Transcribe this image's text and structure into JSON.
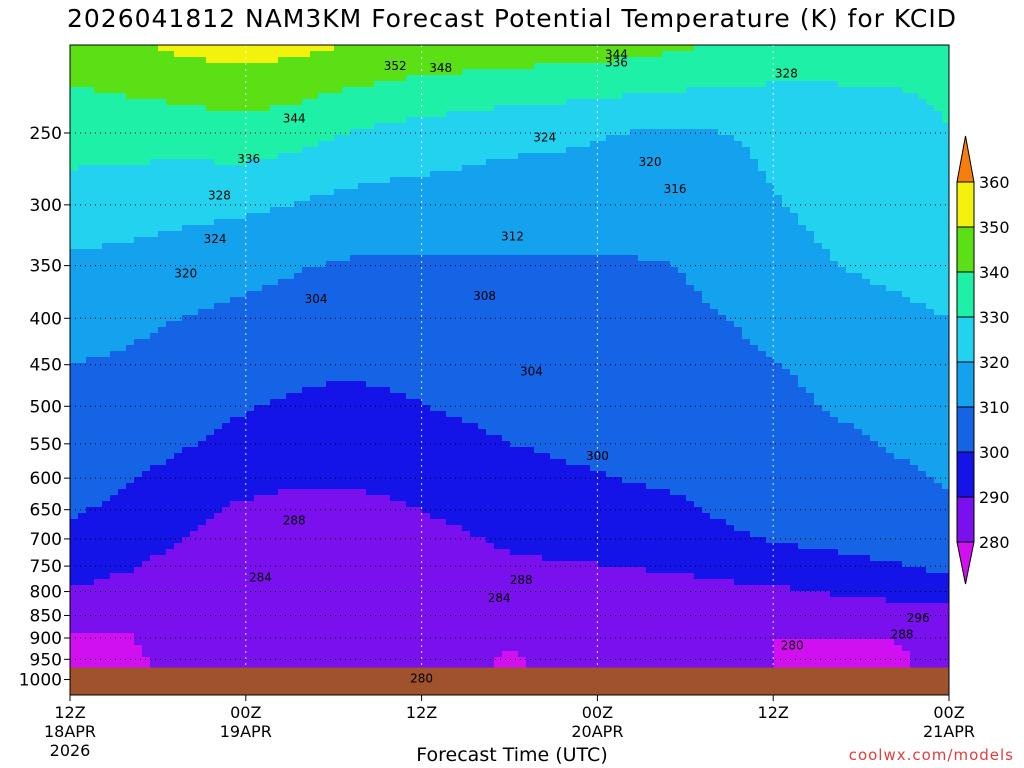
{
  "title": "2026041812 NAM3KM Forecast Potential Temperature (K) for KCID",
  "credit": "coolwx.com/models",
  "chart_data": {
    "type": "heatmap",
    "title": "2026041812 NAM3KM Forecast Potential Temperature (K) for KCID",
    "xlabel": "Forecast Time (UTC)",
    "ylabel": "",
    "y_scale": "log",
    "ylim": [
      1000,
      200
    ],
    "xlim": [
      0,
      60
    ],
    "x_ticks": [
      {
        "hour": 0,
        "lines": [
          "12Z",
          "18APR",
          "2026"
        ]
      },
      {
        "hour": 12,
        "lines": [
          "00Z",
          "19APR"
        ]
      },
      {
        "hour": 24,
        "lines": [
          "12Z"
        ]
      },
      {
        "hour": 36,
        "lines": [
          "00Z",
          "20APR"
        ]
      },
      {
        "hour": 48,
        "lines": [
          "12Z"
        ]
      },
      {
        "hour": 60,
        "lines": [
          "00Z",
          "21APR"
        ]
      }
    ],
    "y_ticks": [
      "250",
      "300",
      "350",
      "400",
      "450",
      "500",
      "550",
      "600",
      "650",
      "700",
      "750",
      "800",
      "850",
      "900",
      "950",
      "1000"
    ],
    "grid": true,
    "colorbar": {
      "levels": [
        280,
        290,
        300,
        310,
        320,
        330,
        340,
        350,
        360
      ],
      "colors": [
        "#d010f0",
        "#7a10ee",
        "#1414e8",
        "#1664e6",
        "#14a2ee",
        "#22d2ee",
        "#1ef0a8",
        "#5ae014",
        "#f2f20c",
        "#f8b410",
        "#f57f0a"
      ]
    },
    "series": [
      {
        "pressure": 950,
        "values": [
          278,
          278,
          283,
          283,
          283,
          283,
          283,
          283,
          279,
          283,
          283,
          283,
          283,
          279,
          279,
          279,
          282
        ]
      },
      {
        "pressure": 900,
        "values": [
          279,
          279,
          284,
          284,
          284,
          284,
          284,
          284,
          281,
          284,
          284,
          284,
          280,
          280,
          280,
          280,
          283
        ]
      },
      {
        "pressure": 850,
        "values": [
          283,
          283,
          285,
          285,
          285,
          285,
          285,
          285,
          285,
          285,
          285,
          285,
          285,
          285,
          285,
          285,
          286
        ]
      },
      {
        "pressure": 800,
        "values": [
          289,
          287,
          286,
          286,
          286,
          286,
          286,
          286,
          286,
          287,
          287,
          287,
          288,
          289,
          291,
          293,
          296
        ]
      },
      {
        "pressure": 750,
        "values": [
          294,
          291,
          287,
          285,
          285,
          285,
          285,
          286,
          288,
          289,
          290,
          291,
          293,
          295,
          297,
          299,
          302
        ]
      },
      {
        "pressure": 700,
        "values": [
          298,
          295,
          290,
          286,
          285,
          285,
          286,
          288,
          292,
          294,
          296,
          297,
          299,
          301,
          303,
          305,
          307
        ]
      },
      {
        "pressure": 650,
        "values": [
          301,
          298,
          293,
          289,
          288,
          288,
          289,
          292,
          295,
          297,
          298,
          299,
          301,
          303,
          305,
          307,
          309
        ]
      },
      {
        "pressure": 600,
        "values": [
          304,
          301,
          297,
          293,
          291,
          291,
          292,
          295,
          297,
          299,
          300,
          301,
          302,
          304,
          306,
          308,
          311
        ]
      },
      {
        "pressure": 550,
        "values": [
          306,
          304,
          301,
          298,
          295,
          294,
          296,
          298,
          300,
          301,
          302,
          303,
          304,
          306,
          308,
          311,
          313
        ]
      },
      {
        "pressure": 500,
        "values": [
          308,
          307,
          304,
          301,
          299,
          298,
          299,
          301,
          302,
          303,
          304,
          305,
          306,
          308,
          311,
          313,
          315
        ]
      },
      {
        "pressure": 450,
        "values": [
          310,
          309,
          307,
          304,
          302,
          301,
          302,
          303,
          304,
          305,
          306,
          307,
          308,
          310,
          313,
          315,
          317
        ]
      },
      {
        "pressure": 400,
        "values": [
          313,
          312,
          310,
          308,
          306,
          304,
          305,
          306,
          307,
          307,
          308,
          308,
          310,
          313,
          316,
          318,
          320
        ]
      },
      {
        "pressure": 350,
        "values": [
          318,
          317,
          315,
          313,
          311,
          309,
          309,
          309,
          309,
          309,
          309,
          310,
          313,
          317,
          320,
          322,
          324
        ]
      },
      {
        "pressure": 300,
        "values": [
          326,
          325,
          323,
          322,
          320,
          317,
          316,
          315,
          314,
          314,
          314,
          315,
          317,
          320,
          323,
          325,
          327
        ]
      },
      {
        "pressure": 250,
        "values": [
          334,
          334,
          334,
          336,
          334,
          330,
          327,
          325,
          323,
          322,
          320,
          319,
          320,
          322,
          325,
          328,
          330
        ]
      },
      {
        "pressure": 200,
        "values": [
          345,
          348,
          352,
          354,
          353,
          350,
          348,
          347,
          346,
          345,
          344,
          342,
          339,
          336,
          334,
          332,
          331
        ]
      }
    ],
    "hours": [
      0,
      3.75,
      7.5,
      11.25,
      15,
      18.75,
      22.5,
      26.25,
      30,
      33.75,
      37.5,
      41.25,
      45,
      48.75,
      52.5,
      56.25,
      60
    ],
    "ground_below_pressure": 970,
    "contour_labels": [
      {
        "value": "344",
        "hour": 37.3,
        "pressure": 205
      },
      {
        "value": "352",
        "hour": 22.2,
        "pressure": 211
      },
      {
        "value": "348",
        "hour": 25.3,
        "pressure": 212
      },
      {
        "value": "336",
        "hour": 37.3,
        "pressure": 209
      },
      {
        "value": "328",
        "hour": 48.9,
        "pressure": 215
      },
      {
        "value": "344",
        "hour": 15.3,
        "pressure": 241
      },
      {
        "value": "324",
        "hour": 32.4,
        "pressure": 253
      },
      {
        "value": "336",
        "hour": 12.2,
        "pressure": 267
      },
      {
        "value": "320",
        "hour": 39.6,
        "pressure": 269
      },
      {
        "value": "316",
        "hour": 41.3,
        "pressure": 288
      },
      {
        "value": "328",
        "hour": 10.2,
        "pressure": 293
      },
      {
        "value": "312",
        "hour": 30.2,
        "pressure": 325
      },
      {
        "value": "324",
        "hour": 9.9,
        "pressure": 327
      },
      {
        "value": "320",
        "hour": 7.9,
        "pressure": 357
      },
      {
        "value": "304",
        "hour": 16.8,
        "pressure": 381
      },
      {
        "value": "308",
        "hour": 28.3,
        "pressure": 378
      },
      {
        "value": "304",
        "hour": 31.5,
        "pressure": 458
      },
      {
        "value": "300",
        "hour": 36.0,
        "pressure": 567
      },
      {
        "value": "288",
        "hour": 15.3,
        "pressure": 668
      },
      {
        "value": "288",
        "hour": 30.8,
        "pressure": 777
      },
      {
        "value": "284",
        "hour": 13.0,
        "pressure": 772
      },
      {
        "value": "284",
        "hour": 29.3,
        "pressure": 813
      },
      {
        "value": "296",
        "hour": 57.9,
        "pressure": 856
      },
      {
        "value": "288",
        "hour": 56.8,
        "pressure": 892
      },
      {
        "value": "280",
        "hour": 49.3,
        "pressure": 917
      },
      {
        "value": "280",
        "hour": 24.0,
        "pressure": 997
      }
    ]
  }
}
